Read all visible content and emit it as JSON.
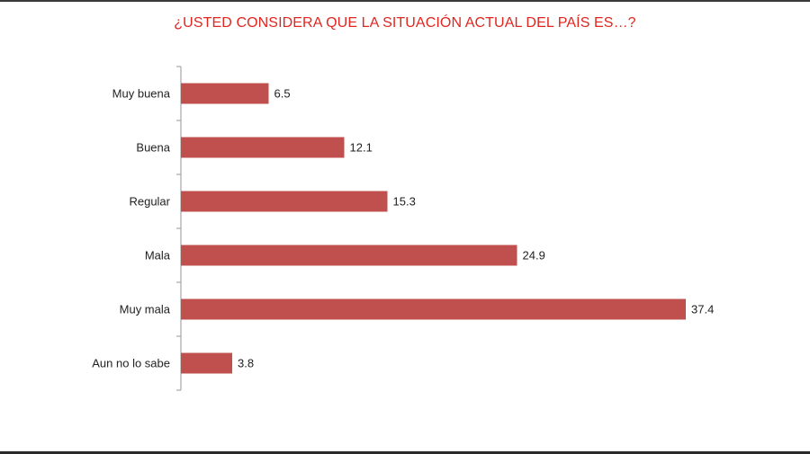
{
  "chart_data": {
    "type": "bar",
    "orientation": "horizontal",
    "title": "¿USTED CONSIDERA QUE LA SITUACIÓN ACTUAL DEL PAÍS ES…?",
    "categories": [
      "Muy buena",
      "Buena",
      "Regular",
      "Mala",
      "Muy mala",
      "Aun no lo sabe"
    ],
    "values": [
      6.5,
      12.1,
      15.3,
      24.9,
      37.4,
      3.8
    ],
    "value_labels": [
      "6.5",
      "12.1",
      "15.3",
      "24.9",
      "37.4",
      "3.8"
    ],
    "xlim": [
      0,
      40
    ],
    "grid": false,
    "colors": {
      "bar": "#c0504d",
      "title": "#e0261f",
      "axis": "#a6a6a6"
    }
  }
}
